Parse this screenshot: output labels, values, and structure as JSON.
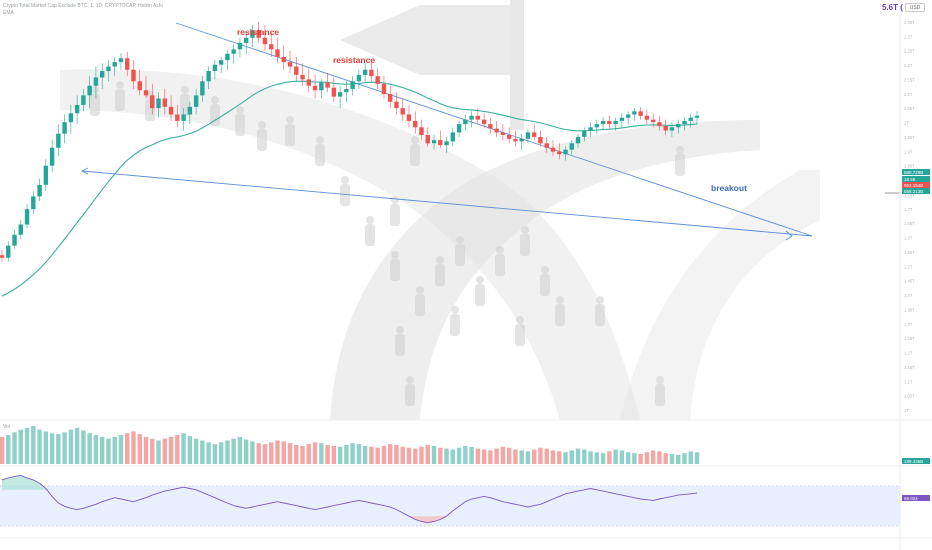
{
  "header": {
    "title": "Crypto Total Market Cap Exclude BTC, 1, 1D, CRYPTOCAP, Heikin Ashi",
    "subtitle": "EMA",
    "top_value": "5.6T (",
    "currency": "USD"
  },
  "colors": {
    "up": "#26a69a",
    "down": "#ef5350",
    "trendline": "#5b8fd9",
    "ma": "#3ab09e",
    "rsi_line": "#7e57c2",
    "rsi_band": "#e8efff",
    "annotation_red": "#e53935",
    "annotation_blue": "#3b6db5"
  },
  "chart_data": [
    {
      "type": "candlestick",
      "role": "price",
      "series_name": "",
      "ma_name": "EMA",
      "candles": [
        [
          0,
          340,
          348,
          330,
          336
        ],
        [
          1,
          336,
          362,
          330,
          355
        ],
        [
          2,
          355,
          380,
          350,
          372
        ],
        [
          3,
          372,
          395,
          365,
          388
        ],
        [
          4,
          388,
          420,
          382,
          412
        ],
        [
          5,
          412,
          440,
          405,
          432
        ],
        [
          6,
          432,
          460,
          425,
          450
        ],
        [
          7,
          450,
          490,
          440,
          480
        ],
        [
          8,
          480,
          520,
          470,
          508
        ],
        [
          9,
          508,
          545,
          495,
          530
        ],
        [
          10,
          530,
          560,
          515,
          548
        ],
        [
          11,
          548,
          575,
          530,
          562
        ],
        [
          12,
          562,
          590,
          545,
          575
        ],
        [
          13,
          575,
          600,
          565,
          590
        ],
        [
          14,
          590,
          620,
          570,
          605
        ],
        [
          15,
          605,
          635,
          585,
          618
        ],
        [
          16,
          618,
          640,
          600,
          628
        ],
        [
          17,
          628,
          645,
          612,
          635
        ],
        [
          18,
          635,
          650,
          620,
          642
        ],
        [
          19,
          642,
          656,
          630,
          648
        ],
        [
          20,
          648,
          658,
          620,
          630
        ],
        [
          21,
          630,
          645,
          600,
          612
        ],
        [
          22,
          612,
          630,
          590,
          598
        ],
        [
          23,
          598,
          620,
          585,
          590
        ],
        [
          24,
          590,
          608,
          560,
          570
        ],
        [
          25,
          570,
          595,
          555,
          585
        ],
        [
          26,
          585,
          600,
          560,
          572
        ],
        [
          27,
          572,
          590,
          550,
          560
        ],
        [
          28,
          560,
          575,
          540,
          550
        ],
        [
          29,
          550,
          570,
          535,
          560
        ],
        [
          30,
          560,
          580,
          545,
          572
        ],
        [
          31,
          572,
          600,
          560,
          590
        ],
        [
          32,
          590,
          620,
          580,
          612
        ],
        [
          33,
          612,
          635,
          600,
          628
        ],
        [
          34,
          628,
          645,
          615,
          638
        ],
        [
          35,
          638,
          650,
          625,
          645
        ],
        [
          36,
          645,
          660,
          630,
          655
        ],
        [
          37,
          655,
          670,
          640,
          662
        ],
        [
          38,
          662,
          680,
          650,
          672
        ],
        [
          39,
          672,
          690,
          655,
          680
        ],
        [
          40,
          680,
          700,
          665,
          692
        ],
        [
          41,
          692,
          705,
          672,
          680
        ],
        [
          42,
          680,
          700,
          660,
          670
        ],
        [
          43,
          670,
          688,
          650,
          662
        ],
        [
          44,
          662,
          680,
          640,
          650
        ],
        [
          45,
          650,
          668,
          630,
          642
        ],
        [
          46,
          642,
          660,
          625,
          635
        ],
        [
          47,
          635,
          650,
          612,
          622
        ],
        [
          48,
          622,
          640,
          605,
          615
        ],
        [
          49,
          615,
          632,
          595,
          605
        ],
        [
          50,
          605,
          622,
          585,
          598
        ],
        [
          51,
          598,
          615,
          585,
          610
        ],
        [
          52,
          610,
          625,
          595,
          602
        ],
        [
          53,
          602,
          618,
          580,
          588
        ],
        [
          54,
          588,
          605,
          570,
          595
        ],
        [
          55,
          595,
          612,
          580,
          600
        ],
        [
          56,
          600,
          620,
          590,
          612
        ],
        [
          57,
          612,
          630,
          600,
          622
        ],
        [
          58,
          622,
          640,
          610,
          630
        ],
        [
          59,
          630,
          645,
          612,
          620
        ],
        [
          60,
          620,
          632,
          600,
          608
        ],
        [
          61,
          608,
          620,
          585,
          592
        ],
        [
          62,
          592,
          605,
          570,
          580
        ],
        [
          63,
          580,
          595,
          560,
          570
        ],
        [
          64,
          570,
          585,
          550,
          560
        ],
        [
          65,
          560,
          575,
          540,
          550
        ],
        [
          66,
          550,
          565,
          530,
          540
        ],
        [
          67,
          540,
          552,
          520,
          528
        ],
        [
          68,
          528,
          540,
          510,
          515
        ],
        [
          69,
          515,
          528,
          505,
          520
        ],
        [
          70,
          520,
          535,
          508,
          512
        ],
        [
          71,
          512,
          525,
          500,
          518
        ],
        [
          72,
          518,
          540,
          510,
          532
        ],
        [
          73,
          532,
          550,
          525,
          545
        ],
        [
          74,
          545,
          560,
          535,
          552
        ],
        [
          75,
          552,
          565,
          540,
          558
        ],
        [
          76,
          558,
          570,
          545,
          552
        ],
        [
          77,
          552,
          562,
          538,
          545
        ],
        [
          78,
          545,
          555,
          530,
          538
        ],
        [
          79,
          538,
          550,
          525,
          532
        ],
        [
          80,
          532,
          545,
          520,
          528
        ],
        [
          81,
          528,
          540,
          515,
          522
        ],
        [
          82,
          522,
          535,
          510,
          518
        ],
        [
          83,
          518,
          530,
          505,
          522
        ],
        [
          84,
          522,
          538,
          515,
          532
        ],
        [
          85,
          532,
          545,
          520,
          525
        ],
        [
          86,
          525,
          535,
          510,
          515
        ],
        [
          87,
          515,
          525,
          500,
          508
        ],
        [
          88,
          508,
          520,
          495,
          502
        ],
        [
          89,
          502,
          515,
          490,
          498
        ],
        [
          90,
          498,
          510,
          488,
          505
        ],
        [
          91,
          505,
          520,
          498,
          515
        ],
        [
          92,
          515,
          530,
          508,
          525
        ],
        [
          93,
          525,
          540,
          518,
          535
        ],
        [
          94,
          535,
          548,
          525,
          540
        ],
        [
          95,
          540,
          552,
          530,
          545
        ],
        [
          96,
          545,
          556,
          535,
          550
        ],
        [
          97,
          550,
          558,
          538,
          545
        ],
        [
          98,
          545,
          555,
          535,
          550
        ],
        [
          99,
          550,
          562,
          540,
          555
        ],
        [
          100,
          555,
          565,
          545,
          560
        ],
        [
          101,
          560,
          570,
          550,
          565
        ],
        [
          102,
          565,
          572,
          552,
          558
        ],
        [
          103,
          558,
          568,
          545,
          552
        ],
        [
          104,
          552,
          562,
          540,
          548
        ],
        [
          105,
          548,
          558,
          535,
          542
        ],
        [
          106,
          542,
          552,
          528,
          535
        ],
        [
          107,
          535,
          548,
          525,
          540
        ],
        [
          108,
          540,
          552,
          530,
          545
        ],
        [
          109,
          545,
          556,
          535,
          550
        ],
        [
          110,
          550,
          560,
          540,
          555
        ],
        [
          111,
          555,
          565,
          545,
          558
        ]
      ],
      "annotations": [
        {
          "text": "resistance",
          "color": "#e53935"
        },
        {
          "text": "resistance",
          "color": "#e53935"
        },
        {
          "text": "breakout",
          "color": "#3b6db5"
        }
      ],
      "price_labels": [
        "580.729B",
        "18 56",
        "552.154B",
        "556.213B"
      ],
      "axis_ticks": [
        "1T",
        "1.05T",
        "1.1T",
        "1.15T",
        "1.2T",
        "1.25T",
        "1.3T",
        "1.35T",
        "1.4T",
        "1.45T",
        "1.5T",
        "1.55T",
        "1.6T",
        "1.65T",
        "1.7T",
        "1.75T",
        "1.8T",
        "1.85T",
        "1.9T",
        "1.95T",
        "2T",
        "2.05T",
        "2.1T",
        "2.15T",
        "2.2T",
        "2.25T",
        "2.3T",
        "2.35T"
      ]
    },
    {
      "type": "bar",
      "role": "volume",
      "series_name": "Vol",
      "last_value_label": "189.436B",
      "values": [
        30,
        32,
        35,
        38,
        40,
        42,
        38,
        36,
        34,
        33,
        35,
        38,
        40,
        37,
        34,
        32,
        30,
        28,
        30,
        32,
        34,
        36,
        33,
        30,
        28,
        26,
        28,
        30,
        32,
        34,
        31,
        28,
        26,
        24,
        22,
        24,
        26,
        28,
        30,
        27,
        25,
        23,
        22,
        24,
        26,
        25,
        23,
        21,
        20,
        22,
        24,
        23,
        21,
        20,
        19,
        21,
        23,
        22,
        20,
        19,
        18,
        20,
        22,
        21,
        19,
        18,
        17,
        19,
        21,
        20,
        18,
        17,
        16,
        18,
        20,
        19,
        17,
        16,
        15,
        17,
        19,
        18,
        16,
        15,
        14,
        16,
        18,
        17,
        15,
        14,
        13,
        15,
        17,
        16,
        14,
        13,
        12,
        14,
        16,
        15,
        13,
        12,
        11,
        13,
        15,
        14,
        12,
        11,
        10,
        12,
        14,
        13
      ]
    },
    {
      "type": "line",
      "role": "rsi",
      "series_name": "",
      "value_label": "65.022",
      "ylim": [
        0,
        100
      ],
      "bands": [
        30,
        70
      ],
      "values": [
        85,
        88,
        90,
        92,
        88,
        85,
        80,
        72,
        60,
        50,
        45,
        42,
        40,
        42,
        45,
        48,
        52,
        55,
        58,
        56,
        54,
        52,
        55,
        58,
        62,
        65,
        68,
        70,
        72,
        74,
        72,
        70,
        66,
        62,
        58,
        54,
        50,
        46,
        44,
        42,
        44,
        46,
        48,
        50,
        52,
        50,
        48,
        46,
        44,
        42,
        40,
        42,
        44,
        46,
        48,
        50,
        52,
        54,
        52,
        50,
        48,
        46,
        44,
        40,
        35,
        30,
        25,
        22,
        20,
        22,
        25,
        30,
        38,
        45,
        52,
        56,
        58,
        60,
        58,
        55,
        52,
        50,
        48,
        46,
        44,
        46,
        48,
        52,
        56,
        60,
        64,
        66,
        68,
        70,
        72,
        70,
        68,
        66,
        64,
        62,
        60,
        58,
        56,
        55,
        54,
        56,
        58,
        60,
        62,
        63,
        64,
        65
      ]
    }
  ]
}
